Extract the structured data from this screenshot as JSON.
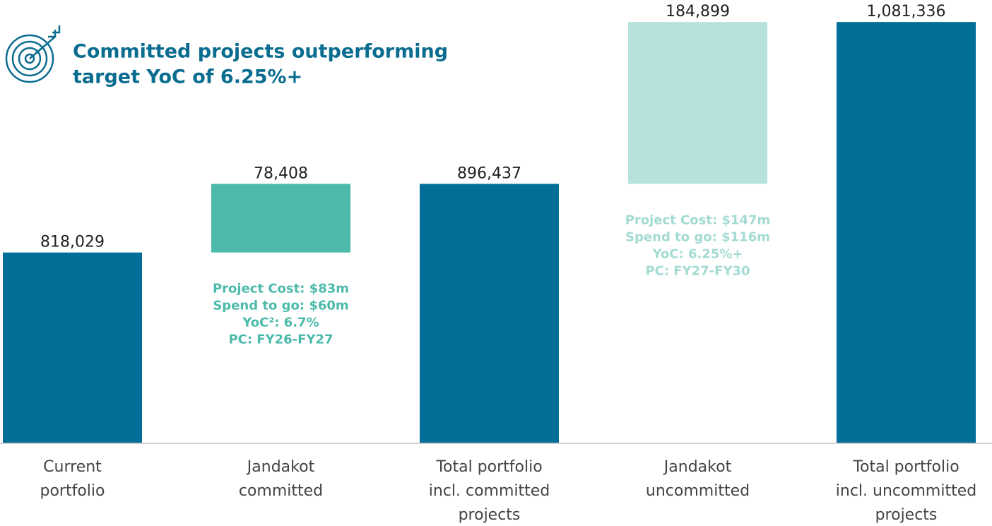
{
  "chart_data": {
    "type": "waterfall",
    "title_lines": [
      "Committed projects outperforming",
      "target YoC of 6.25%+"
    ],
    "categories": [
      [
        "Current",
        "portfolio"
      ],
      [
        "Jandakot",
        "committed"
      ],
      [
        "Total portfolio",
        "incl.  committed",
        "projects"
      ],
      [
        "Jandakot",
        "uncommitted"
      ],
      [
        "Total portfolio",
        "incl.  uncommitted",
        "projects"
      ]
    ],
    "measure": [
      "absolute",
      "relative",
      "total",
      "relative",
      "total"
    ],
    "values": [
      818029,
      78408,
      896437,
      184899,
      1081336
    ],
    "value_labels": [
      "818,029",
      "78,408",
      "896,437",
      "184,899",
      "1,081,336"
    ],
    "colors": [
      "#006e96",
      "#4cbaab",
      "#006e96",
      "#b5e3dc",
      "#006e96"
    ],
    "annotations": [
      null,
      [
        "Project Cost: $83m",
        "Spend to go: $60m",
        "YoC²: 6.7%",
        "PC: FY26-FY27"
      ],
      null,
      [
        "Project Cost: $147m",
        "Spend to go: $116m",
        "YoC: 6.25%+",
        "PC: FY27-FY30"
      ],
      null
    ],
    "annotation_colors": [
      null,
      "#4cbaab",
      null,
      "#a3dbd3",
      null
    ],
    "ylim": [
      600000,
      1100000
    ]
  }
}
